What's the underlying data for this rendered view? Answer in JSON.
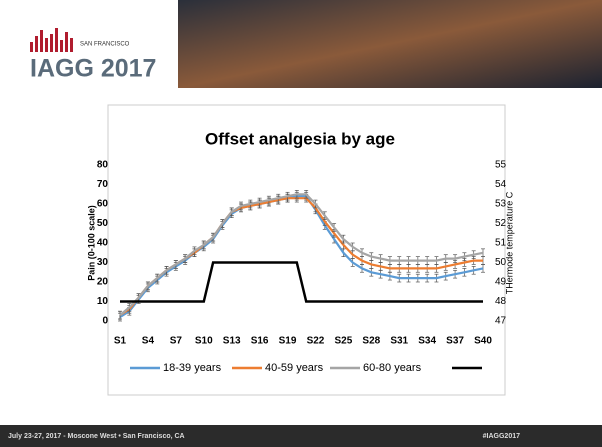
{
  "header": {
    "logo": "IAGG 2017",
    "city": "SAN FRANCISCO"
  },
  "footer": {
    "left": "July 23-27, 2017 - Moscone West • San Francisco, CA",
    "right": "#IAGG2017"
  },
  "chart_data": {
    "type": "line",
    "title": "Offset analgesia by age",
    "y_label": "Pain (0-100 scale)",
    "y2_label": "THermode temperature C",
    "categories": [
      "S1",
      null,
      null,
      "S4",
      null,
      null,
      "S7",
      null,
      null,
      "S10",
      null,
      null,
      "S13",
      null,
      null,
      "S16",
      null,
      null,
      "S19",
      null,
      null,
      "S22",
      null,
      null,
      "S25",
      null,
      null,
      "S28",
      null,
      null,
      "S31",
      null,
      null,
      "S34",
      null,
      null,
      "S37",
      null,
      null,
      "S40"
    ],
    "ylim": [
      0,
      80
    ],
    "yticks": [
      0,
      10,
      20,
      30,
      40,
      50,
      60,
      70,
      80
    ],
    "y2lim": [
      47,
      55
    ],
    "y2ticks": [
      47,
      48,
      49,
      50,
      51,
      52,
      53,
      54,
      55
    ],
    "series": [
      {
        "name": "18-39 years",
        "color": "#5b9bd5",
        "error": 2,
        "values": [
          2,
          5,
          11,
          17,
          21,
          25,
          28,
          31,
          35,
          38,
          42,
          49,
          55,
          58,
          59,
          60,
          61,
          62,
          63,
          64,
          64,
          57,
          49,
          42,
          35,
          30,
          27,
          25,
          24,
          23,
          22,
          22,
          22,
          22,
          22,
          23,
          24,
          25,
          26,
          27
        ]
      },
      {
        "name": "40-59  years",
        "color": "#ed7d31",
        "error": 2,
        "values": [
          3,
          6,
          12,
          18,
          22,
          26,
          29,
          32,
          35,
          39,
          43,
          50,
          56,
          58,
          59,
          60,
          61,
          62,
          63,
          63,
          63,
          58,
          51,
          45,
          39,
          34,
          31,
          29,
          28,
          27,
          27,
          27,
          27,
          27,
          27,
          28,
          29,
          30,
          31,
          31
        ]
      },
      {
        "name": "60-80 years",
        "color": "#a5a5a5",
        "error": 2,
        "values": [
          3,
          7,
          12,
          18,
          22,
          26,
          29,
          32,
          36,
          39,
          43,
          50,
          56,
          59,
          60,
          61,
          62,
          63,
          64,
          65,
          65,
          60,
          54,
          48,
          42,
          38,
          35,
          33,
          32,
          31,
          31,
          31,
          31,
          31,
          31,
          32,
          32,
          33,
          34,
          35
        ]
      },
      {
        "color": "#000000",
        "axis": "y2",
        "values": [
          48,
          48,
          48,
          48,
          48,
          48,
          48,
          48,
          48,
          48,
          50,
          50,
          50,
          50,
          50,
          50,
          50,
          50,
          50,
          50,
          48,
          48,
          48,
          48,
          48,
          48,
          48,
          48,
          48,
          48,
          48,
          48,
          48,
          48,
          48,
          48,
          48,
          48,
          48,
          48
        ]
      }
    ]
  }
}
